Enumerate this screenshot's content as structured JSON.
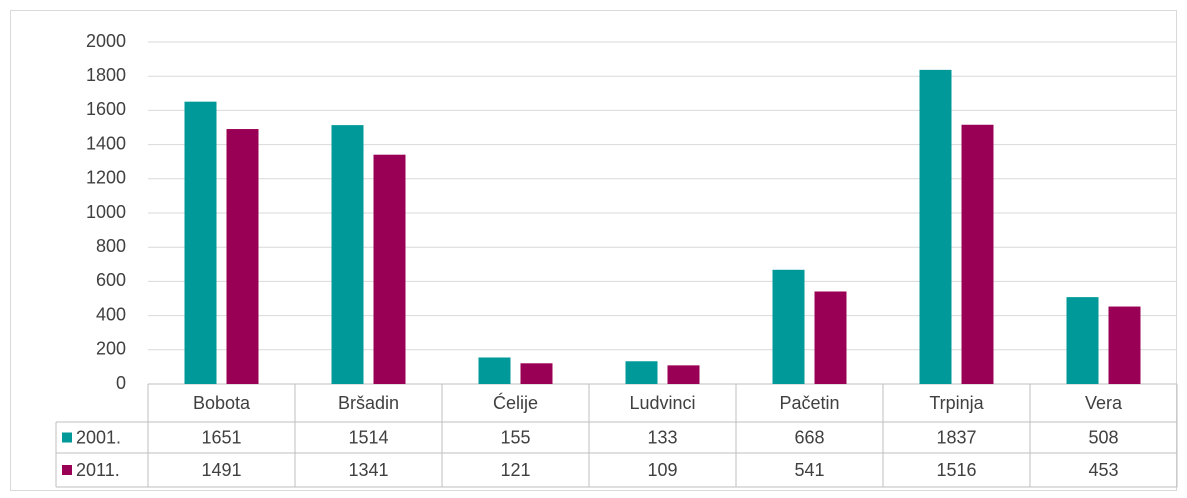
{
  "chart_data": {
    "type": "bar",
    "categories": [
      "Bobota",
      "Bršadin",
      "Ćelije",
      "Ludvinci",
      "Pačetin",
      "Trpinja",
      "Vera"
    ],
    "series": [
      {
        "name": "2001.",
        "color": "#009999",
        "values": [
          1651,
          1514,
          155,
          133,
          668,
          1837,
          508
        ]
      },
      {
        "name": "2011.",
        "color": "#990055",
        "values": [
          1491,
          1341,
          121,
          109,
          541,
          1516,
          453
        ]
      }
    ],
    "ylim": [
      0,
      2000
    ],
    "yticks": [
      0,
      200,
      400,
      600,
      800,
      1000,
      1200,
      1400,
      1600,
      1800,
      2000
    ],
    "grid": true
  }
}
